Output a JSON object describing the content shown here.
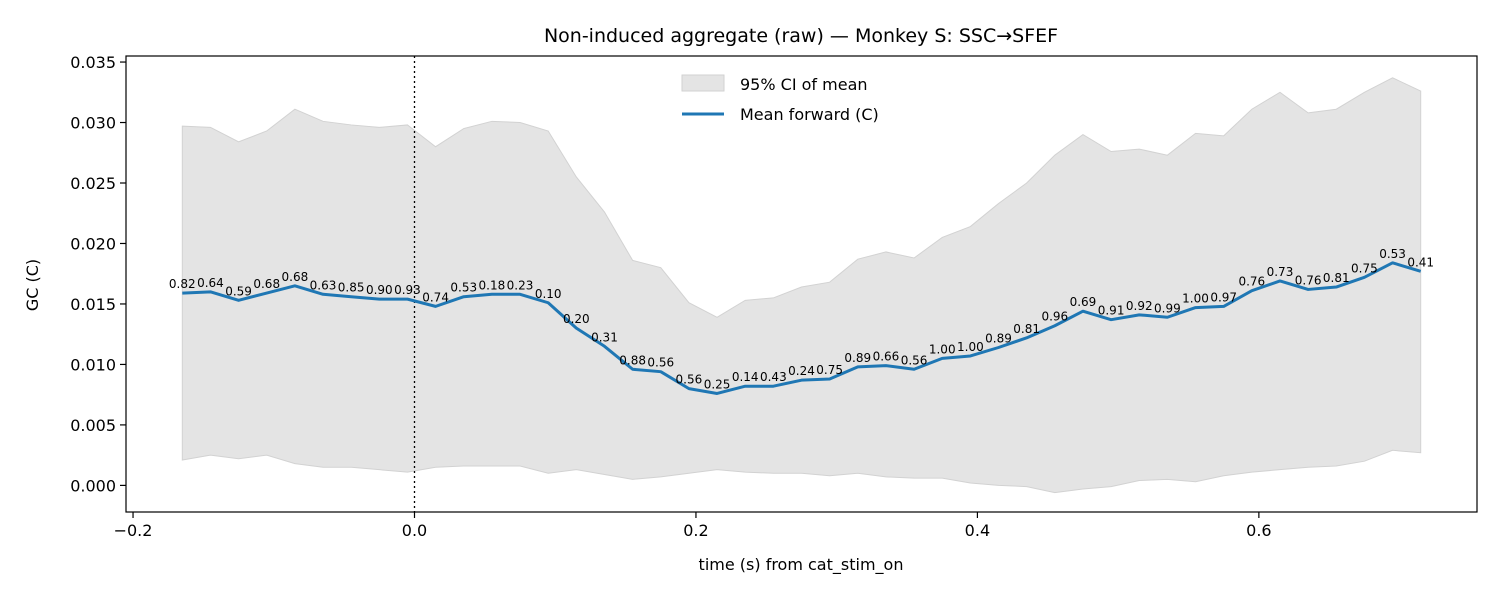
{
  "chart_data": {
    "type": "line",
    "title": "Non-induced aggregate (raw) — Monkey S: SSC→SFEF",
    "xlabel": "time (s) from cat_stim_on",
    "ylabel": "GC (C)",
    "xlim": [
      -0.205,
      0.755
    ],
    "ylim": [
      -0.0022,
      0.0355
    ],
    "xticks": [
      -0.2,
      0.0,
      0.2,
      0.4,
      0.6
    ],
    "xtick_labels": [
      "−0.2",
      "0.0",
      "0.2",
      "0.4",
      "0.6"
    ],
    "yticks": [
      0.0,
      0.005,
      0.01,
      0.015,
      0.02,
      0.025,
      0.03,
      0.035
    ],
    "ytick_labels": [
      "0.000",
      "0.005",
      "0.010",
      "0.015",
      "0.020",
      "0.025",
      "0.030",
      "0.035"
    ],
    "vline_x": 0.0,
    "legend": {
      "position": "upper-center",
      "entries": [
        "95% CI of mean",
        "Mean forward (C)"
      ]
    },
    "colors": {
      "mean": "#1f77b4",
      "ci_fill": "#e4e4e4",
      "ci_edge": "#d2d2d2"
    },
    "x": [
      -0.165,
      -0.145,
      -0.125,
      -0.105,
      -0.085,
      -0.065,
      -0.045,
      -0.025,
      -0.005,
      0.015,
      0.035,
      0.055,
      0.075,
      0.095,
      0.115,
      0.135,
      0.155,
      0.175,
      0.195,
      0.215,
      0.235,
      0.255,
      0.275,
      0.295,
      0.315,
      0.335,
      0.355,
      0.375,
      0.395,
      0.415,
      0.435,
      0.455,
      0.475,
      0.495,
      0.515,
      0.535,
      0.555,
      0.575,
      0.595,
      0.615,
      0.635,
      0.655,
      0.675,
      0.695,
      0.715
    ],
    "series": [
      {
        "name": "Mean forward (C)",
        "values": [
          0.0159,
          0.016,
          0.0153,
          0.0159,
          0.0165,
          0.0158,
          0.0156,
          0.0154,
          0.0154,
          0.0148,
          0.0156,
          0.0158,
          0.0158,
          0.0151,
          0.013,
          0.0115,
          0.0096,
          0.0094,
          0.008,
          0.0076,
          0.0082,
          0.0082,
          0.0087,
          0.0088,
          0.0098,
          0.0099,
          0.0096,
          0.0105,
          0.0107,
          0.0114,
          0.0122,
          0.0132,
          0.0144,
          0.0137,
          0.0141,
          0.0139,
          0.0147,
          0.0148,
          0.0161,
          0.0169,
          0.0162,
          0.0164,
          0.0172,
          0.0184,
          0.0177
        ]
      }
    ],
    "ci_upper": [
      0.0297,
      0.0296,
      0.0284,
      0.0293,
      0.0311,
      0.0301,
      0.0298,
      0.0296,
      0.0298,
      0.028,
      0.0295,
      0.0301,
      0.03,
      0.0293,
      0.0255,
      0.0226,
      0.0186,
      0.018,
      0.0151,
      0.0139,
      0.0153,
      0.0155,
      0.0164,
      0.0168,
      0.0187,
      0.0193,
      0.0188,
      0.0205,
      0.0214,
      0.0233,
      0.025,
      0.0273,
      0.029,
      0.0276,
      0.0278,
      0.0273,
      0.0291,
      0.0289,
      0.0311,
      0.0325,
      0.0308,
      0.0311,
      0.0325,
      0.0337,
      0.0326
    ],
    "ci_lower": [
      0.0021,
      0.0025,
      0.0022,
      0.0025,
      0.0018,
      0.0015,
      0.0015,
      0.0013,
      0.0011,
      0.0015,
      0.0016,
      0.0016,
      0.0016,
      0.001,
      0.0013,
      0.0009,
      0.0005,
      0.0007,
      0.001,
      0.0013,
      0.0011,
      0.001,
      0.001,
      0.0008,
      0.001,
      0.0007,
      0.0006,
      0.0006,
      0.0002,
      0.0,
      -0.0001,
      -0.0006,
      -0.0003,
      -0.0001,
      0.0004,
      0.0005,
      0.0003,
      0.0008,
      0.0011,
      0.0013,
      0.0015,
      0.0016,
      0.002,
      0.0029,
      0.0027
    ],
    "annotations": [
      "0.82",
      "0.64",
      "0.59",
      "0.68",
      "0.68",
      "0.63",
      "0.85",
      "0.90",
      "0.93",
      "0.74",
      "0.53",
      "0.18",
      "0.23",
      "0.10",
      "0.20",
      "0.31",
      "0.88",
      "0.56",
      "0.56",
      "0.25",
      "0.14",
      "0.43",
      "0.24",
      "0.75",
      "0.89",
      "0.66",
      "0.56",
      "1.00",
      "1.00",
      "0.89",
      "0.81",
      "0.96",
      "0.69",
      "0.91",
      "0.92",
      "0.99",
      "1.00",
      "0.97",
      "0.76",
      "0.73",
      "0.76",
      "0.81",
      "0.75",
      "0.53",
      "0.41"
    ]
  }
}
